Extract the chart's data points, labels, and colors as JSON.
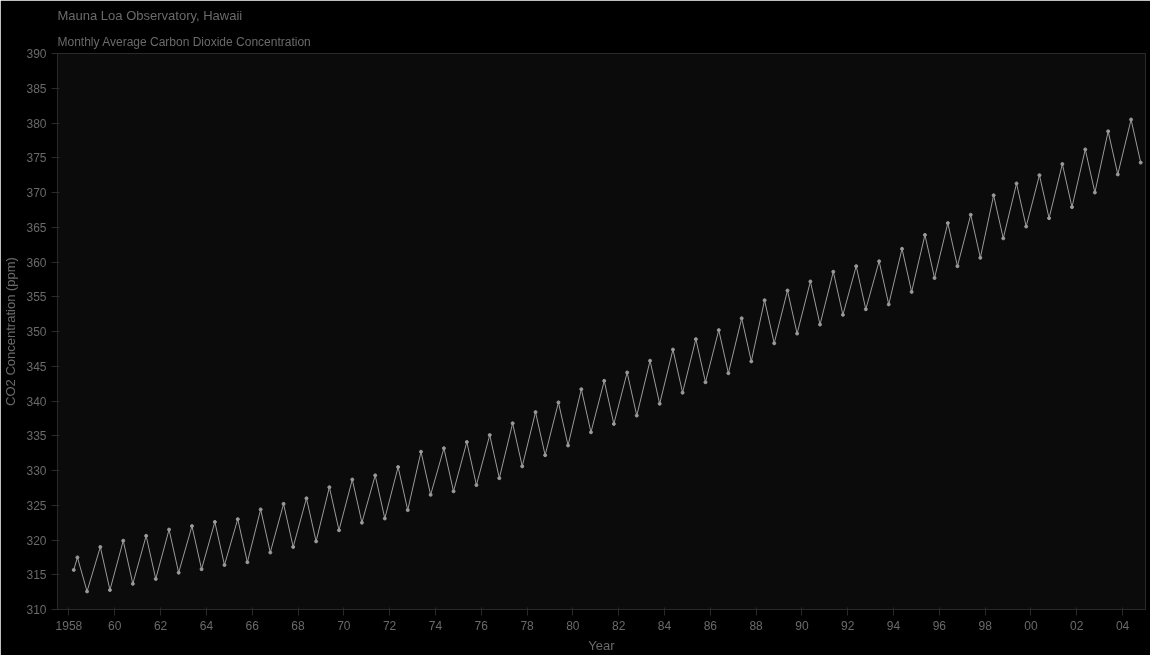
{
  "chart_data": {
    "type": "line",
    "title": "Mauna Loa Observatory, Hawaii",
    "subtitle": "Monthly Average Carbon Dioxide Concentration",
    "xlabel": "Year",
    "ylabel": "CO2 Concentration (ppm)",
    "x": [
      1958.21,
      1958.37,
      1958.79,
      1959.37,
      1959.79,
      1960.37,
      1960.79,
      1961.37,
      1961.79,
      1962.37,
      1962.79,
      1963.37,
      1963.79,
      1964.37,
      1964.79,
      1965.37,
      1965.79,
      1966.37,
      1966.79,
      1967.37,
      1967.79,
      1968.37,
      1968.79,
      1969.37,
      1969.79,
      1970.37,
      1970.79,
      1971.37,
      1971.79,
      1972.37,
      1972.79,
      1973.37,
      1973.79,
      1974.37,
      1974.79,
      1975.37,
      1975.79,
      1976.37,
      1976.79,
      1977.37,
      1977.79,
      1978.37,
      1978.79,
      1979.37,
      1979.79,
      1980.37,
      1980.79,
      1981.37,
      1981.79,
      1982.37,
      1982.79,
      1983.37,
      1983.79,
      1984.37,
      1984.79,
      1985.37,
      1985.79,
      1986.37,
      1986.79,
      1987.37,
      1987.79,
      1988.37,
      1988.79,
      1989.37,
      1989.79,
      1990.37,
      1990.79,
      1991.37,
      1991.79,
      1992.37,
      1992.79,
      1993.37,
      1993.79,
      1994.37,
      1994.79,
      1995.37,
      1995.79,
      1996.37,
      1996.79,
      1997.37,
      1997.79,
      1998.37,
      1998.79,
      1999.37,
      1999.79,
      2000.37,
      2000.79,
      2001.37,
      2001.79,
      2002.37,
      2002.79,
      2003.37,
      2003.79,
      2004.37,
      2004.79
    ],
    "series": [
      {
        "color": "#9a9a9a",
        "values": [
          315.7,
          317.5,
          312.6,
          319.0,
          312.8,
          319.9,
          313.7,
          320.6,
          314.4,
          321.5,
          315.3,
          322.0,
          315.8,
          322.6,
          316.4,
          323.0,
          316.8,
          324.4,
          318.2,
          325.2,
          319.0,
          326.0,
          319.8,
          327.6,
          321.4,
          328.7,
          322.5,
          329.3,
          323.1,
          330.5,
          324.3,
          332.7,
          326.5,
          333.2,
          327.0,
          334.1,
          327.9,
          335.1,
          328.9,
          336.8,
          330.6,
          338.4,
          332.2,
          339.8,
          333.6,
          341.7,
          335.5,
          342.9,
          336.7,
          344.1,
          337.9,
          345.8,
          339.6,
          347.4,
          341.2,
          348.9,
          342.7,
          350.2,
          344.0,
          351.9,
          345.7,
          354.5,
          348.3,
          355.9,
          349.7,
          357.2,
          351.0,
          358.6,
          352.4,
          359.4,
          353.2,
          360.1,
          353.9,
          361.9,
          355.7,
          363.9,
          357.7,
          365.6,
          359.4,
          366.8,
          360.6,
          369.6,
          363.4,
          371.3,
          365.1,
          372.5,
          366.3,
          374.1,
          367.9,
          376.2,
          370.0,
          378.8,
          372.6,
          380.5,
          374.3
        ]
      }
    ],
    "xlim": [
      1957.5,
      2005
    ],
    "xticks": [
      {
        "value": 1958,
        "label": "1958"
      },
      {
        "value": 1960,
        "label": "60"
      },
      {
        "value": 1962,
        "label": "62"
      },
      {
        "value": 1964,
        "label": "64"
      },
      {
        "value": 1966,
        "label": "66"
      },
      {
        "value": 1968,
        "label": "68"
      },
      {
        "value": 1970,
        "label": "70"
      },
      {
        "value": 1972,
        "label": "72"
      },
      {
        "value": 1974,
        "label": "74"
      },
      {
        "value": 1976,
        "label": "76"
      },
      {
        "value": 1978,
        "label": "78"
      },
      {
        "value": 1980,
        "label": "80"
      },
      {
        "value": 1982,
        "label": "82"
      },
      {
        "value": 1984,
        "label": "84"
      },
      {
        "value": 1986,
        "label": "86"
      },
      {
        "value": 1988,
        "label": "88"
      },
      {
        "value": 1990,
        "label": "90"
      },
      {
        "value": 1992,
        "label": "92"
      },
      {
        "value": 1994,
        "label": "94"
      },
      {
        "value": 1996,
        "label": "96"
      },
      {
        "value": 1998,
        "label": "98"
      },
      {
        "value": 2000,
        "label": "00"
      },
      {
        "value": 2002,
        "label": "02"
      },
      {
        "value": 2004,
        "label": "04"
      }
    ],
    "ylim": [
      310,
      390
    ],
    "yticks": [
      310,
      315,
      320,
      325,
      330,
      335,
      340,
      345,
      350,
      355,
      360,
      365,
      370,
      375,
      380,
      385,
      390
    ],
    "grid": false,
    "marker": "circle",
    "line_style": "solid"
  }
}
